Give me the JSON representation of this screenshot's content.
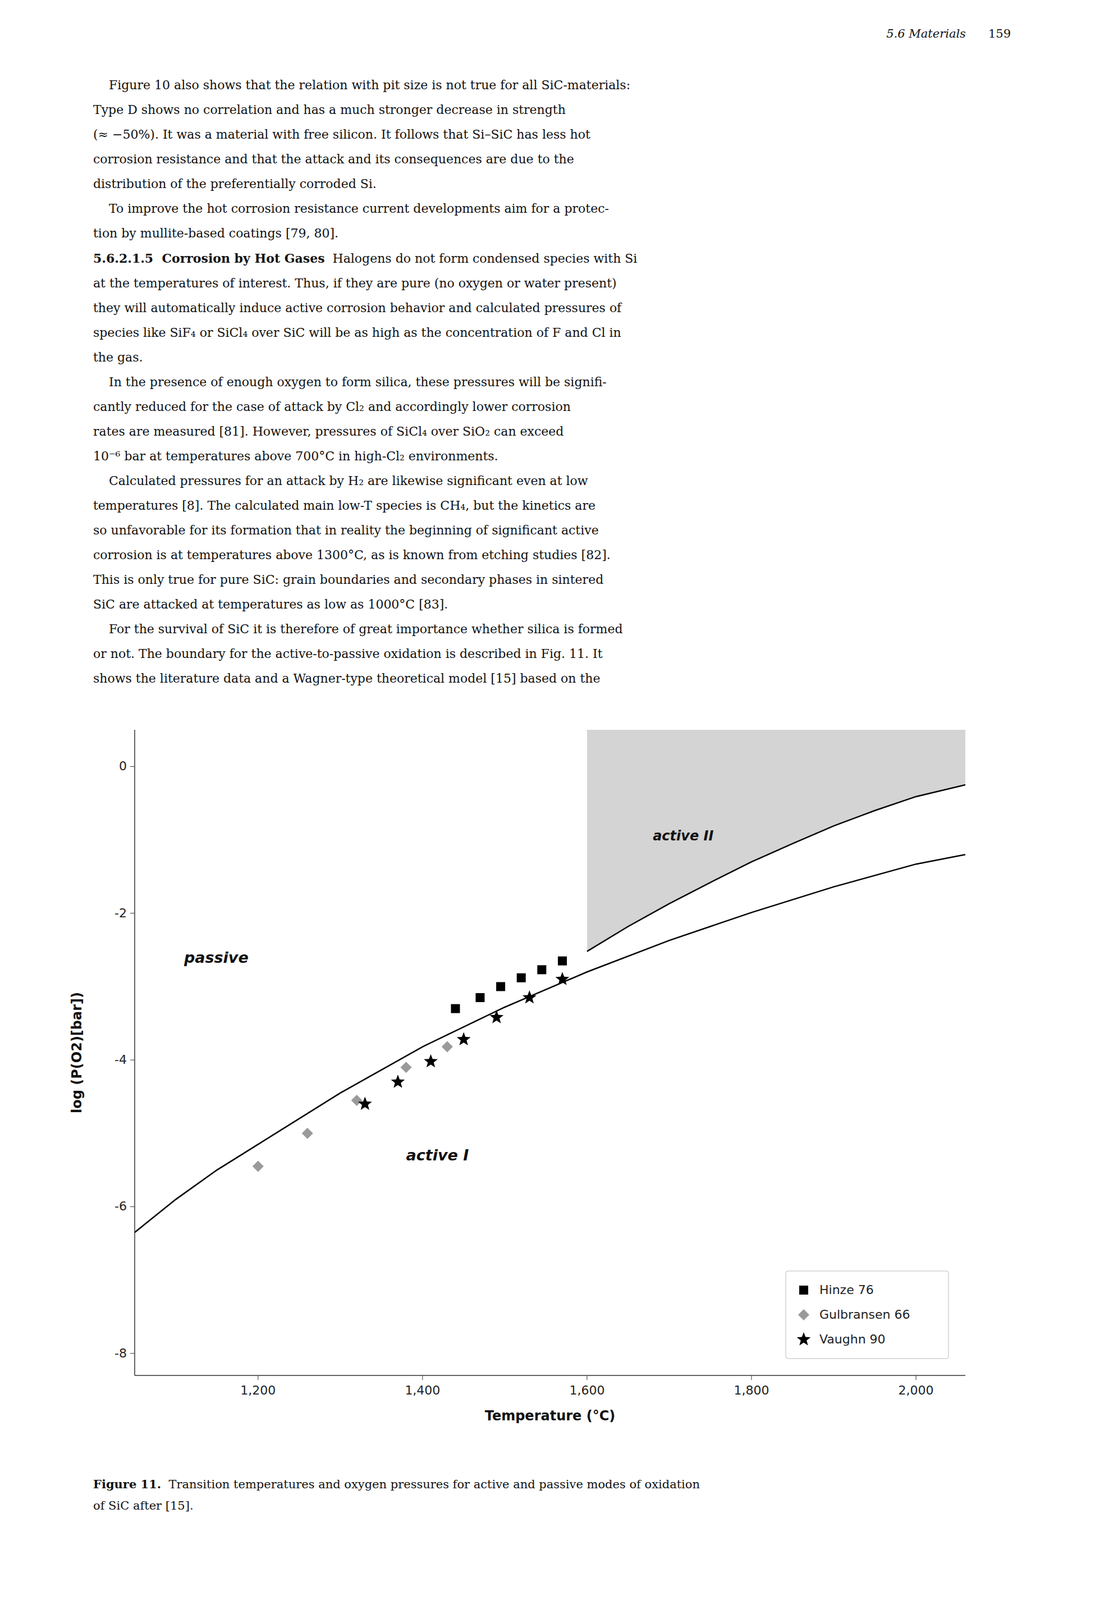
{
  "chart_data": {
    "type": "scatter",
    "xlabel": "Temperature (°C)",
    "ylabel": "log (P(O2)[bar])",
    "xlim": [
      1050,
      2060
    ],
    "ylim": [
      -8.3,
      0.5
    ],
    "xticks": [
      {
        "value": 1200,
        "label": "1,200"
      },
      {
        "value": 1400,
        "label": "1,400"
      },
      {
        "value": 1600,
        "label": "1,600"
      },
      {
        "value": 1800,
        "label": "1,800"
      },
      {
        "value": 2000,
        "label": "2,000"
      }
    ],
    "yticks": [
      0,
      -2,
      -4,
      -6,
      -8
    ],
    "grid": false,
    "legend": "lower right",
    "series": [
      {
        "type": "area",
        "color": "#aaaaaa",
        "x": [
          1600,
          1650,
          1700,
          1750,
          1800,
          1850,
          1900,
          1950,
          2000,
          2060,
          2060,
          1600
        ],
        "values": [
          -2.52,
          -2.18,
          -1.87,
          -1.58,
          -1.3,
          -1.05,
          -0.81,
          -0.6,
          -0.41,
          -0.25,
          0.5,
          0.5
        ]
      },
      {
        "type": "line",
        "color": "#000000",
        "x": [
          1050,
          1100,
          1150,
          1200,
          1300,
          1400,
          1500,
          1600,
          1700,
          1800,
          1900,
          2000,
          2060
        ],
        "values": [
          -6.35,
          -5.9,
          -5.5,
          -5.15,
          -4.45,
          -3.82,
          -3.28,
          -2.8,
          -2.37,
          -1.99,
          -1.64,
          -1.33,
          -1.2
        ]
      },
      {
        "type": "line",
        "color": "#000000",
        "x": [
          1600,
          1650,
          1700,
          1750,
          1800,
          1850,
          1900,
          1950,
          2000,
          2060
        ],
        "values": [
          -2.52,
          -2.18,
          -1.87,
          -1.58,
          -1.3,
          -1.05,
          -0.81,
          -0.6,
          -0.41,
          -0.25
        ]
      },
      {
        "name": "Hinze 76",
        "type": "scatter",
        "marker": "square",
        "color": "#000000",
        "x": [
          1440,
          1470,
          1495,
          1520,
          1545,
          1570
        ],
        "values": [
          -3.3,
          -3.15,
          -3.0,
          -2.88,
          -2.77,
          -2.65
        ]
      },
      {
        "name": "Gulbransen 66",
        "type": "scatter",
        "marker": "diamond",
        "color": "#888888",
        "x": [
          1200,
          1260,
          1320,
          1380,
          1430
        ],
        "values": [
          -5.45,
          -5.0,
          -4.55,
          -4.1,
          -3.82
        ]
      },
      {
        "name": "Vaughn 90",
        "type": "scatter",
        "marker": "star",
        "color": "#000000",
        "x": [
          1330,
          1370,
          1410,
          1450,
          1490,
          1530,
          1570
        ],
        "values": [
          -4.6,
          -4.3,
          -4.02,
          -3.72,
          -3.42,
          -3.15,
          -2.9
        ]
      }
    ],
    "annotations": [
      {
        "text": "passive",
        "x": 1110,
        "y": -2.6
      },
      {
        "text": "active I",
        "x": 1380,
        "y": -5.3
      },
      {
        "text": "active II",
        "x": 1680,
        "y": -0.95
      }
    ],
    "header": [
      "5.6 Materials",
      "159"
    ],
    "body": [
      [
        "    Figure 10 also shows that the relation with pit size is not true for all SiC-materials:"
      ],
      [
        "Type D shows no correlation and has a much stronger decrease in strength"
      ],
      [
        "(≈ −50%). It was a material with free silicon. It follows that Si–SiC has less hot"
      ],
      [
        "corrosion resistance and that the attack and its consequences are due to the"
      ],
      [
        "distribution of the preferentially corroded Si."
      ],
      [
        "    To improve the hot corrosion resistance current developments aim for a protec-"
      ],
      [
        "tion by mullite-based coatings [79, 80]."
      ],
      [
        "5.6.2.1.5  Corrosion by Hot Gases",
        "  Halogens do not form condensed species with Si"
      ],
      [
        "at the temperatures of interest. Thus, if they are pure (no oxygen or water present)"
      ],
      [
        "they will automatically induce active corrosion behavior and calculated pressures of"
      ],
      [
        "species like SiF₄ or SiCl₄ over SiC will be as high as the concentration of F and Cl in"
      ],
      [
        "the gas."
      ],
      [
        "    In the presence of enough oxygen to form silica, these pressures will be signifi-"
      ],
      [
        "cantly reduced for the case of attack by Cl₂ and accordingly lower corrosion"
      ],
      [
        "rates are measured [81]. However, pressures of SiCl₄ over SiO₂ can exceed"
      ],
      [
        "10⁻⁶ bar at temperatures above 700°C in high-Cl₂ environments."
      ],
      [
        "    Calculated pressures for an attack by H₂ are likewise significant even at low"
      ],
      [
        "temperatures [8]. The calculated main low-​T species is CH₄, but the kinetics are"
      ],
      [
        "so unfavorable for its formation that in reality the beginning of significant active"
      ],
      [
        "corrosion is at temperatures above 1300°C, as is known from etching studies [82]."
      ],
      [
        "This is only true for pure SiC: grain boundaries and secondary phases in sintered"
      ],
      [
        "SiC are attacked at temperatures as low as 1000°C [83]."
      ],
      [
        "    For the survival of SiC it is therefore of great importance whether silica is formed"
      ],
      [
        "or not. The boundary for the active-to-passive oxidation is described in Fig. 11. It"
      ],
      [
        "shows the literature data and a Wagner-type theoretical model [15] based on the"
      ]
    ],
    "caption": [
      [
        "Figure 11.",
        "  Transition temperatures and oxygen pressures for active and passive modes of oxidation"
      ],
      [
        "of SiC after [15]."
      ]
    ]
  }
}
